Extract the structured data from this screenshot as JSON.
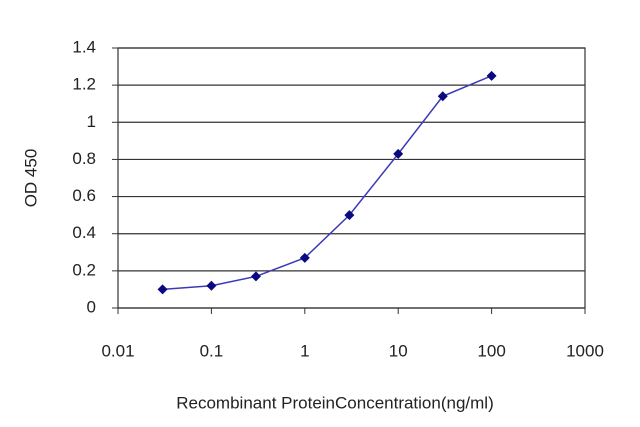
{
  "chart_data": {
    "type": "line",
    "y_label": "OD 450",
    "x_label": "Recombinant ProteinConcentration(ng/ml)",
    "x": [
      0.03,
      0.1,
      0.3,
      1,
      3,
      10,
      30,
      100
    ],
    "values": [
      0.1,
      0.12,
      0.17,
      0.27,
      0.5,
      0.83,
      1.14,
      1.25
    ],
    "color": "#3a3ab8",
    "marker_color": "#0a0a80",
    "xscale": "log",
    "xlim": [
      0.01,
      1000
    ],
    "xticks": [
      0.01,
      0.1,
      1,
      10,
      100,
      1000
    ],
    "ylim": [
      0,
      1.4
    ],
    "yticks": [
      0,
      0.2,
      0.4,
      0.6,
      0.8,
      1,
      1.2,
      1.4
    ],
    "grid": true
  }
}
